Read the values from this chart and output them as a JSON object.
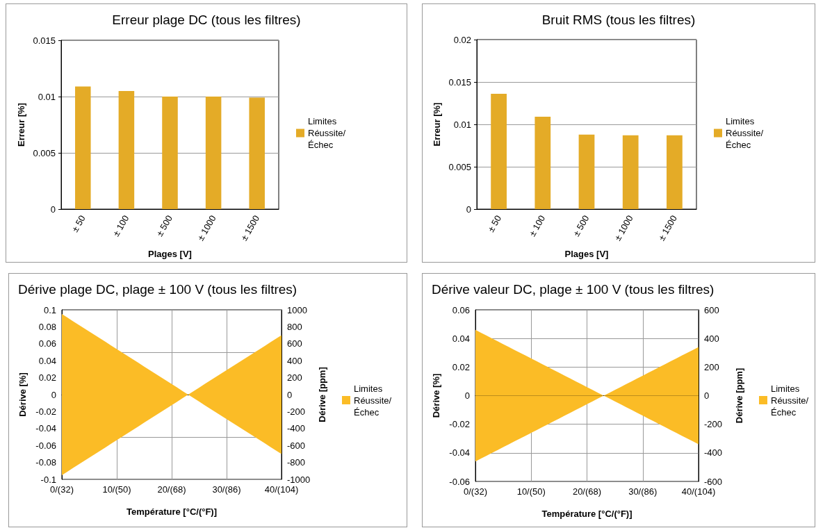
{
  "chart_data": [
    {
      "type": "bar",
      "title": "Erreur plage DC (tous les filtres)",
      "xlabel": "Plages [V]",
      "ylabel": "Erreur [%]",
      "categories": [
        "± 50",
        "± 100",
        "± 500",
        "± 1000",
        "± 1500"
      ],
      "series": [
        {
          "name": "Limites Réussite/Échec",
          "color": "#e4ab27",
          "values": [
            0.0109,
            0.0105,
            0.01,
            0.01,
            0.0099
          ]
        }
      ],
      "ylim": [
        0,
        0.015
      ],
      "yticks": [
        0,
        0.005,
        0.01,
        0.015
      ],
      "grid": "y",
      "legend": "right"
    },
    {
      "type": "bar",
      "title": "Bruit RMS (tous les filtres)",
      "xlabel": "Plages [V]",
      "ylabel": "Erreur [%]",
      "categories": [
        "± 50",
        "± 100",
        "± 500",
        "± 1000",
        "± 1500"
      ],
      "series": [
        {
          "name": "Limites Réussite/Échec",
          "color": "#e4ab27",
          "values": [
            0.0136,
            0.0109,
            0.0088,
            0.0087,
            0.0087
          ]
        }
      ],
      "ylim": [
        0,
        0.02
      ],
      "yticks": [
        0,
        0.005,
        0.01,
        0.015,
        0.02
      ],
      "grid": "y",
      "legend": "right"
    },
    {
      "type": "area",
      "title": "Dérive plage DC, plage ± 100 V (tous les filtres)",
      "xlabel": "Température [°C/(°F)]",
      "ylabel": "Dérive [%]",
      "y2label": "Dérive [ppm]",
      "categories": [
        "0/(32)",
        null,
        null,
        null,
        null,
        null,
        null,
        null,
        null,
        null,
        "10/(50)",
        null,
        null,
        null,
        null,
        null,
        null,
        null,
        null,
        null,
        "20/(68)",
        null,
        null,
        null,
        null,
        null,
        null,
        null,
        null,
        null,
        "30/(86)",
        null,
        null,
        null,
        null,
        null,
        null,
        null,
        null,
        null,
        "40/(104)"
      ],
      "series": [
        {
          "name": "Limites Réussite/Échec",
          "color": "#fbbc26",
          "values": [
            0.095,
            0.0909,
            0.0867,
            0.0826,
            0.0785,
            0.0743,
            0.0702,
            0.0661,
            0.062,
            0.0578,
            0.0537,
            0.0496,
            0.0454,
            0.0413,
            0.0372,
            0.033,
            0.0289,
            0.0248,
            0.0207,
            0.0165,
            0.0124,
            0.0083,
            0.0041,
            0,
            0.0041,
            0.0082,
            0.0124,
            0.0165,
            0.0206,
            0.0247,
            0.0288,
            0.0329,
            0.0371,
            0.0412,
            0.0453,
            0.0494,
            0.0535,
            0.0576,
            0.0618,
            0.0659,
            0.07
          ]
        },
        {
          "color": "#fbbc26",
          "values": [
            -0.095,
            -0.0909,
            -0.0867,
            -0.0826,
            -0.0785,
            -0.0743,
            -0.0702,
            -0.0661,
            -0.062,
            -0.0578,
            -0.0537,
            -0.0496,
            -0.0454,
            -0.0413,
            -0.0372,
            -0.033,
            -0.0289,
            -0.0248,
            -0.0207,
            -0.0165,
            -0.0124,
            -0.0083,
            -0.0041,
            0,
            -0.0041,
            -0.0082,
            -0.0124,
            -0.0165,
            -0.0206,
            -0.0247,
            -0.0288,
            -0.0329,
            -0.0371,
            -0.0412,
            -0.0453,
            -0.0494,
            -0.0535,
            -0.0576,
            -0.0618,
            -0.0659,
            -0.07
          ]
        }
      ],
      "ylim": [
        -0.1,
        0.1
      ],
      "yticks": [
        -0.1,
        -0.08,
        -0.06,
        -0.04,
        -0.02,
        0,
        0.02,
        0.04,
        0.06,
        0.08,
        0.1
      ],
      "y2lim": [
        -1000,
        1000
      ],
      "y2ticks": [
        -1000,
        -800,
        -600,
        -400,
        -200,
        0,
        200,
        400,
        600,
        800,
        1000
      ],
      "grid": true,
      "legend": "right"
    },
    {
      "type": "area",
      "title": "Dérive valeur DC, plage ± 100 V (tous les filtres)",
      "xlabel": "Température [°C/(°F)]",
      "ylabel": "Dérive [%]",
      "y2label": "Dérive [ppm]",
      "categories": [
        "0/(32)",
        null,
        null,
        null,
        null,
        null,
        null,
        null,
        null,
        null,
        "10/(50)",
        null,
        null,
        null,
        null,
        null,
        null,
        null,
        null,
        null,
        "20/(68)",
        null,
        null,
        null,
        null,
        null,
        null,
        null,
        null,
        null,
        "30/(86)",
        null,
        null,
        null,
        null,
        null,
        null,
        null,
        null,
        null,
        "40/(104)"
      ],
      "series": [
        {
          "name": "Limites Réussite/Échec",
          "color": "#fbbc26",
          "values": [
            0.046,
            0.044,
            0.042,
            0.04,
            0.038,
            0.036,
            0.034,
            0.032,
            0.03,
            0.028,
            0.026,
            0.024,
            0.022,
            0.02,
            0.018,
            0.016,
            0.014,
            0.012,
            0.01,
            0.008,
            0.006,
            0.004,
            0.002,
            0,
            0.002,
            0.004,
            0.006,
            0.008,
            0.01,
            0.012,
            0.014,
            0.016,
            0.018,
            0.02,
            0.022,
            0.024,
            0.026,
            0.028,
            0.03,
            0.032,
            0.034
          ]
        },
        {
          "color": "#fbbc26",
          "values": [
            -0.046,
            -0.044,
            -0.042,
            -0.04,
            -0.038,
            -0.036,
            -0.034,
            -0.032,
            -0.03,
            -0.028,
            -0.026,
            -0.024,
            -0.022,
            -0.02,
            -0.018,
            -0.016,
            -0.014,
            -0.012,
            -0.01,
            -0.008,
            -0.006,
            -0.004,
            -0.002,
            0,
            -0.002,
            -0.004,
            -0.006,
            -0.008,
            -0.01,
            -0.012,
            -0.014,
            -0.016,
            -0.018,
            -0.02,
            -0.022,
            -0.024,
            -0.026,
            -0.028,
            -0.03,
            -0.032,
            -0.034
          ]
        }
      ],
      "ylim": [
        -0.06,
        0.06
      ],
      "yticks": [
        -0.06,
        -0.04,
        -0.02,
        0,
        0.02,
        0.04,
        0.06
      ],
      "y2lim": [
        -600,
        600
      ],
      "y2ticks": [
        -600,
        -400,
        -200,
        0,
        200,
        400,
        600
      ],
      "grid": true,
      "legend": "right"
    }
  ]
}
